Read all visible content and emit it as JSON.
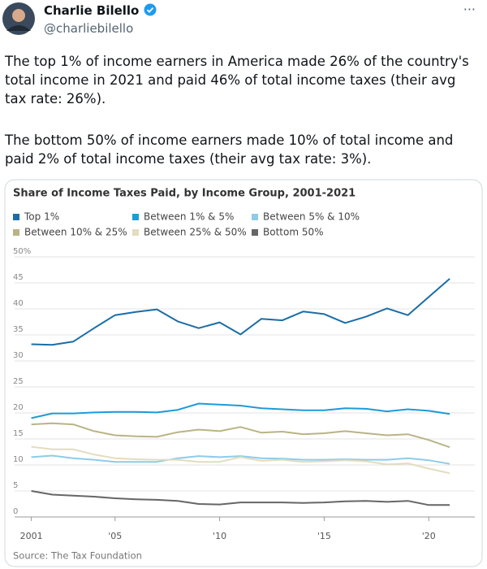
{
  "post": {
    "author": "Charlie Bilello",
    "handle": "@charliebilello",
    "paragraphs": [
      "The top 1% of income earners in America made 26% of the country's total income in 2021 and paid 46% of total income taxes (their avg tax rate: 26%).",
      "The bottom 50% of income earners made 10% of total income and paid 2% of total income taxes (their avg tax rate: 3%)."
    ]
  },
  "chart_data": {
    "type": "line",
    "title": "Share of Income Taxes Paid, by Income Group, 2001-2021",
    "source": "Source: The Tax Foundation",
    "x": [
      2001,
      2002,
      2003,
      2004,
      2005,
      2006,
      2007,
      2008,
      2009,
      2010,
      2011,
      2012,
      2013,
      2014,
      2015,
      2016,
      2017,
      2018,
      2019,
      2020,
      2021
    ],
    "series": [
      {
        "name": "Top 1%",
        "color": "#1a6ea6",
        "values": [
          33.2,
          33.1,
          33.7,
          36.3,
          38.8,
          39.4,
          39.9,
          37.6,
          36.3,
          37.4,
          35.1,
          38.1,
          37.8,
          39.5,
          39.0,
          37.3,
          38.5,
          40.1,
          38.8,
          42.3,
          45.8
        ]
      },
      {
        "name": "Between 1% & 5%",
        "color": "#1e9bd7",
        "values": [
          19.0,
          19.9,
          19.9,
          20.1,
          20.2,
          20.2,
          20.1,
          20.6,
          21.8,
          21.6,
          21.4,
          20.9,
          20.7,
          20.5,
          20.5,
          20.9,
          20.8,
          20.3,
          20.7,
          20.4,
          19.8
        ]
      },
      {
        "name": "Between 5% & 10%",
        "color": "#8ecbea",
        "values": [
          11.5,
          11.8,
          11.3,
          11.0,
          10.6,
          10.6,
          10.6,
          11.3,
          11.7,
          11.5,
          11.7,
          11.3,
          11.2,
          11.0,
          11.0,
          11.1,
          11.0,
          11.0,
          11.3,
          10.9,
          10.2
        ]
      },
      {
        "name": "Between 10% & 25%",
        "color": "#b9b486",
        "values": [
          17.8,
          18.0,
          17.8,
          16.5,
          15.7,
          15.5,
          15.4,
          16.3,
          16.8,
          16.5,
          17.3,
          16.2,
          16.4,
          15.9,
          16.1,
          16.5,
          16.1,
          15.7,
          15.9,
          14.8,
          13.4
        ]
      },
      {
        "name": "Between 25% & 50%",
        "color": "#e3dcbf",
        "values": [
          13.5,
          13.0,
          13.0,
          12.0,
          11.3,
          11.1,
          11.0,
          11.0,
          10.6,
          10.6,
          11.5,
          10.8,
          11.0,
          10.6,
          10.7,
          10.9,
          10.7,
          10.1,
          10.3,
          9.3,
          8.4
        ]
      },
      {
        "name": "Bottom 50%",
        "color": "#666666",
        "values": [
          5.0,
          4.3,
          4.1,
          3.9,
          3.6,
          3.4,
          3.3,
          3.1,
          2.5,
          2.4,
          2.8,
          2.8,
          2.8,
          2.7,
          2.8,
          3.0,
          3.1,
          2.9,
          3.1,
          2.3,
          2.3
        ]
      }
    ],
    "xlim": [
      2000.2,
      2022.2
    ],
    "xticks": [
      2001,
      {
        "value": 2005,
        "label": "'05"
      },
      {
        "value": 2010,
        "label": "'10"
      },
      {
        "value": 2015,
        "label": "'15"
      },
      {
        "value": 2020,
        "label": "'20"
      }
    ],
    "ylim": [
      0,
      50
    ],
    "yticks": [
      0,
      5,
      10,
      15,
      20,
      25,
      30,
      35,
      40,
      45,
      {
        "value": 50,
        "label": "50%"
      }
    ],
    "grid": true
  }
}
